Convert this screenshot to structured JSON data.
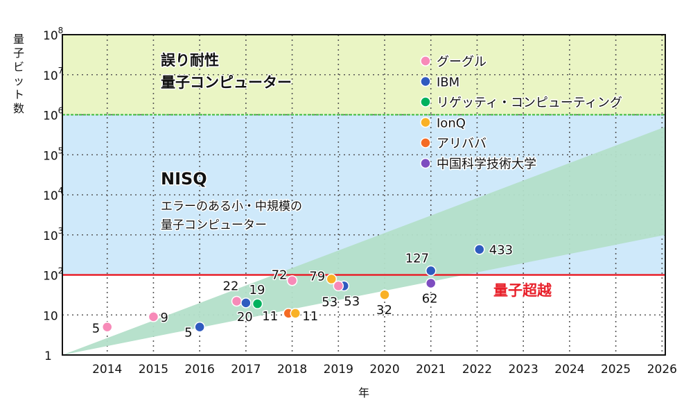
{
  "chart_data": {
    "type": "scatter",
    "title": "",
    "xlabel": "年",
    "ylabel": "量子ビット数",
    "yscale": "log",
    "xlim": [
      2013.03,
      2026.07
    ],
    "ylim": [
      1,
      100000000
    ],
    "xticks": [
      "2014",
      "2015",
      "2016",
      "2017",
      "2018",
      "2019",
      "2020",
      "2021",
      "2022",
      "2023",
      "2024",
      "2025",
      "2026"
    ],
    "yticks": [
      {
        "value": 1,
        "base": "1",
        "exp": ""
      },
      {
        "value": 10,
        "base": "10",
        "exp": ""
      },
      {
        "value": 100,
        "base": "10",
        "exp": "2"
      },
      {
        "value": 1000,
        "base": "10",
        "exp": "3"
      },
      {
        "value": 10000,
        "base": "10",
        "exp": "4"
      },
      {
        "value": 100000,
        "base": "10",
        "exp": "5"
      },
      {
        "value": 1000000,
        "base": "10",
        "exp": "6"
      },
      {
        "value": 10000000,
        "base": "10",
        "exp": "7"
      },
      {
        "value": 100000000,
        "base": "10",
        "exp": "8"
      }
    ],
    "grid": true,
    "regions": [
      {
        "name": "fault-tolerant",
        "from": 1000000,
        "to": 100000000,
        "color": "#eaf5c4",
        "title": "誤り耐性",
        "subtitle": "量子コンピューター"
      },
      {
        "name": "nisq",
        "from": 100,
        "to": 1000000,
        "color": "#cfe9fa",
        "title": "NISQ",
        "subtitle_lines": [
          "エラーのある小・中規模の",
          "量子コンピューター"
        ]
      }
    ],
    "threshold_line": {
      "value": 100,
      "color": "#e8202a",
      "label": "量子超越"
    },
    "ft_line": {
      "value": 1000000,
      "color": "#3cb93c"
    },
    "trend_band": {
      "color": "#b3dfc9",
      "start": [
        2013.03,
        1
      ],
      "end_upper": [
        2026.07,
        500000
      ],
      "end_lower": [
        2026.07,
        1000
      ]
    },
    "legend": {
      "placement": "top-right",
      "entries": [
        {
          "name": "グーグル",
          "color": "#f78ab8"
        },
        {
          "name": "IBM",
          "color": "#2f5bbf"
        },
        {
          "name": "リゲッティ・コンピューティング",
          "color": "#00b15e"
        },
        {
          "name": "IonQ",
          "color": "#f9b126"
        },
        {
          "name": "アリババ",
          "color": "#f46b24"
        },
        {
          "name": "中国科学技術大学",
          "color": "#7e4dc0"
        }
      ]
    },
    "points": [
      {
        "company": 0,
        "x": 2014.0,
        "y": 5,
        "label": "5"
      },
      {
        "company": 0,
        "x": 2015.0,
        "y": 9,
        "label": "9"
      },
      {
        "company": 1,
        "x": 2016.0,
        "y": 5,
        "label": "5"
      },
      {
        "company": 0,
        "x": 2016.8,
        "y": 22,
        "label": "22"
      },
      {
        "company": 1,
        "x": 2017.0,
        "y": 20,
        "label": "20"
      },
      {
        "company": 2,
        "x": 2017.25,
        "y": 19,
        "label": "19"
      },
      {
        "company": 0,
        "x": 2018.0,
        "y": 72,
        "label": "72"
      },
      {
        "company": 4,
        "x": 2017.92,
        "y": 11,
        "label": "11"
      },
      {
        "company": 3,
        "x": 2018.07,
        "y": 11,
        "label": "11"
      },
      {
        "company": 3,
        "x": 2018.85,
        "y": 79,
        "label": "79"
      },
      {
        "company": 1,
        "x": 2019.12,
        "y": 53,
        "label": "53"
      },
      {
        "company": 0,
        "x": 2019.0,
        "y": 53,
        "label": "53"
      },
      {
        "company": 3,
        "x": 2020.0,
        "y": 32,
        "label": "32"
      },
      {
        "company": 1,
        "x": 2021.0,
        "y": 127,
        "label": "127"
      },
      {
        "company": 5,
        "x": 2021.0,
        "y": 62,
        "label": "62"
      },
      {
        "company": 1,
        "x": 2022.05,
        "y": 433,
        "label": "433"
      }
    ]
  }
}
